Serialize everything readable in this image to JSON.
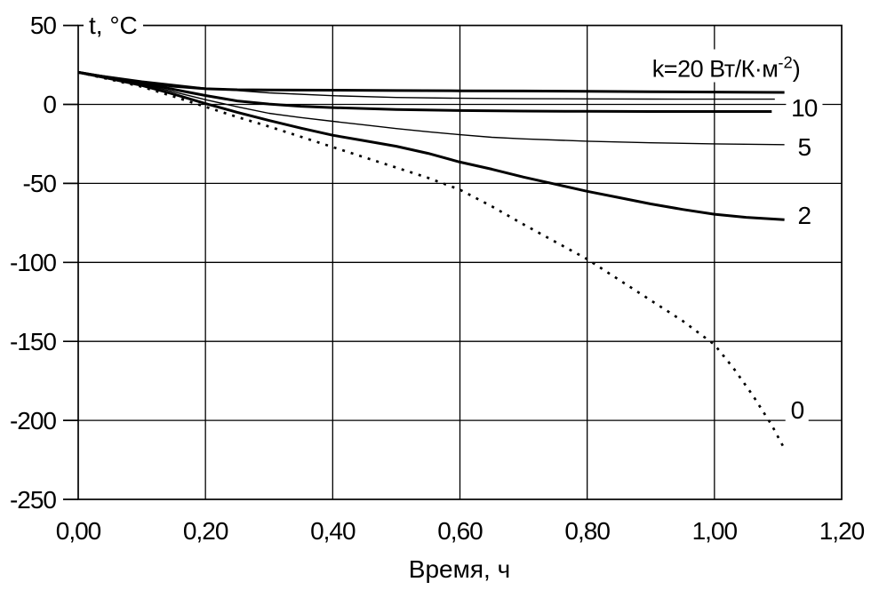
{
  "figure": {
    "background": "#ffffff",
    "line_color": "#000000",
    "y_axis_title": "t, °C",
    "x_axis_title": "Время, ч",
    "legend_text_full": "k=20 Вт/К·м⁻²)",
    "legend_parts": {
      "base": "k=20 Вт/К·м",
      "sup": "-2",
      "tail": ")"
    }
  },
  "chart_data": {
    "type": "line",
    "title": "",
    "xlabel": "Время, ч",
    "ylabel": "t, °C",
    "xlim": [
      0,
      1.2
    ],
    "ylim": [
      -250,
      50
    ],
    "grid": true,
    "legend_position": "top-right-inside",
    "x_ticks": {
      "values": [
        0,
        0.2,
        0.4,
        0.6,
        0.8,
        1.0,
        1.2
      ],
      "labels": [
        "0,00",
        "0,20",
        "0,40",
        "0,60",
        "0,80",
        "1,00",
        "1,20"
      ]
    },
    "y_ticks": {
      "values": [
        50,
        0,
        -50,
        -100,
        -150,
        -200,
        -250
      ],
      "labels": [
        "50",
        "0",
        "-50",
        "-100",
        "-150",
        "-200",
        "-250"
      ]
    },
    "x_gridlines": [
      0.2,
      0.4,
      0.6,
      0.8,
      1.0
    ],
    "y_gridlines": [
      0,
      -50,
      -100,
      -150,
      -200
    ],
    "series": [
      {
        "name": "k=20",
        "k": 20,
        "line_style": "solid-thick",
        "points": [
          [
            0,
            20.3
          ],
          [
            0.05,
            17
          ],
          [
            0.1,
            14
          ],
          [
            0.15,
            11.5
          ],
          [
            0.2,
            9.9
          ],
          [
            0.25,
            9.3
          ],
          [
            0.3,
            9.1
          ],
          [
            0.4,
            9
          ],
          [
            0.5,
            8.8
          ],
          [
            0.6,
            8.6
          ],
          [
            0.7,
            8.5
          ],
          [
            0.8,
            8.3
          ],
          [
            0.9,
            8
          ],
          [
            1.0,
            7.8
          ],
          [
            1.11,
            7.6
          ]
        ]
      },
      {
        "name": "unlabeled-thin",
        "k": null,
        "line_style": "solid-thin",
        "points": [
          [
            0,
            20.3
          ],
          [
            0.1,
            14.8
          ],
          [
            0.2,
            10.3
          ],
          [
            0.3,
            7.3
          ],
          [
            0.4,
            5.5
          ],
          [
            0.5,
            4.4
          ],
          [
            0.6,
            3.9
          ],
          [
            0.7,
            3.6
          ],
          [
            0.8,
            3.5
          ],
          [
            0.9,
            3.4
          ],
          [
            1.0,
            3.3
          ],
          [
            1.095,
            3.3
          ]
        ]
      },
      {
        "name": "k=10",
        "k": 10,
        "line_style": "solid-thick",
        "points": [
          [
            0,
            20.3
          ],
          [
            0.05,
            16.8
          ],
          [
            0.1,
            13.5
          ],
          [
            0.15,
            9.5
          ],
          [
            0.2,
            5.6
          ],
          [
            0.25,
            2.2
          ],
          [
            0.3,
            0.2
          ],
          [
            0.35,
            -1.2
          ],
          [
            0.4,
            -2
          ],
          [
            0.5,
            -3.2
          ],
          [
            0.6,
            -3.9
          ],
          [
            0.7,
            -4.2
          ],
          [
            0.8,
            -4.4
          ],
          [
            0.9,
            -4.5
          ],
          [
            1.0,
            -4.5
          ],
          [
            1.09,
            -4.5
          ]
        ]
      },
      {
        "name": "k=5",
        "k": 5,
        "line_style": "solid-thin",
        "points": [
          [
            0,
            20.3
          ],
          [
            0.05,
            16.5
          ],
          [
            0.1,
            12.8
          ],
          [
            0.15,
            8
          ],
          [
            0.2,
            3
          ],
          [
            0.25,
            -1.5
          ],
          [
            0.3,
            -5.6
          ],
          [
            0.35,
            -8.3
          ],
          [
            0.4,
            -10.7
          ],
          [
            0.45,
            -13
          ],
          [
            0.5,
            -15.3
          ],
          [
            0.55,
            -17.3
          ],
          [
            0.6,
            -19.2
          ],
          [
            0.65,
            -20.8
          ],
          [
            0.7,
            -21.8
          ],
          [
            0.8,
            -23.3
          ],
          [
            0.9,
            -24.3
          ],
          [
            1.0,
            -25
          ],
          [
            1.11,
            -25.5
          ]
        ]
      },
      {
        "name": "k=2",
        "k": 2,
        "line_style": "solid-thick",
        "points": [
          [
            0,
            20.3
          ],
          [
            0.05,
            16.3
          ],
          [
            0.1,
            12
          ],
          [
            0.15,
            6.5
          ],
          [
            0.2,
            0.5
          ],
          [
            0.25,
            -5
          ],
          [
            0.3,
            -10.2
          ],
          [
            0.35,
            -15
          ],
          [
            0.4,
            -19.5
          ],
          [
            0.45,
            -23
          ],
          [
            0.5,
            -26.5
          ],
          [
            0.55,
            -31
          ],
          [
            0.6,
            -36.5
          ],
          [
            0.65,
            -41
          ],
          [
            0.7,
            -46
          ],
          [
            0.75,
            -50.5
          ],
          [
            0.8,
            -55
          ],
          [
            0.85,
            -59
          ],
          [
            0.9,
            -63
          ],
          [
            0.95,
            -66.5
          ],
          [
            1.0,
            -69.5
          ],
          [
            1.05,
            -71.5
          ],
          [
            1.11,
            -73
          ]
        ]
      },
      {
        "name": "k=0",
        "k": 0,
        "line_style": "dotted",
        "points": [
          [
            0,
            20.3
          ],
          [
            0.05,
            15.8
          ],
          [
            0.1,
            11.2
          ],
          [
            0.15,
            5
          ],
          [
            0.2,
            -1.5
          ],
          [
            0.25,
            -8
          ],
          [
            0.3,
            -14
          ],
          [
            0.35,
            -20.5
          ],
          [
            0.4,
            -27
          ],
          [
            0.45,
            -33.5
          ],
          [
            0.5,
            -40
          ],
          [
            0.55,
            -46.5
          ],
          [
            0.6,
            -54
          ],
          [
            0.65,
            -64.5
          ],
          [
            0.7,
            -76
          ],
          [
            0.75,
            -87
          ],
          [
            0.8,
            -98
          ],
          [
            0.85,
            -111
          ],
          [
            0.9,
            -124
          ],
          [
            0.95,
            -137
          ],
          [
            1.0,
            -152
          ],
          [
            1.03,
            -167
          ],
          [
            1.06,
            -184
          ],
          [
            1.09,
            -203
          ],
          [
            1.11,
            -218
          ]
        ]
      }
    ],
    "curve_labels": [
      {
        "text": "10",
        "x": 1.141,
        "t": -2.5
      },
      {
        "text": "5",
        "x": 1.141,
        "t": -27
      },
      {
        "text": "2",
        "x": 1.141,
        "t": -70.5
      },
      {
        "text": "0",
        "x": 1.13,
        "t": -194
      }
    ],
    "annotations": [
      "k=20 Вт/К·м⁻²)"
    ]
  }
}
